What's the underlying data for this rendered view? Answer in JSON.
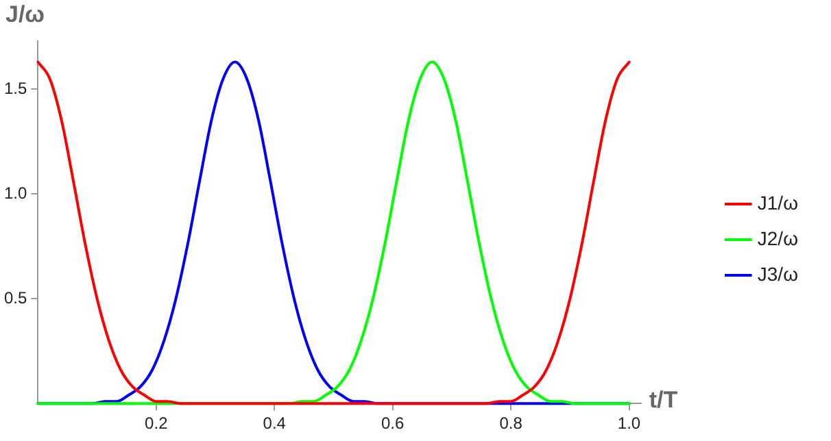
{
  "chart_data": {
    "type": "line",
    "xlabel": "t/T",
    "ylabel": "J/ω",
    "xlim": [
      0,
      1.02
    ],
    "ylim": [
      0,
      1.73
    ],
    "xticks": [
      0.2,
      0.4,
      0.6,
      0.8,
      {
        "value": 1,
        "label": "1.0"
      }
    ],
    "yticks": [
      0.5,
      {
        "value": 1,
        "label": "1.0"
      },
      1.5
    ],
    "grid": false,
    "legend": "right",
    "marker": "none",
    "line_style": "solid",
    "series": [
      {
        "name": "J1/ω",
        "color": "#ff0000",
        "x": [
          0,
          0.02,
          0.04,
          0.06,
          0.08,
          0.1,
          0.12,
          0.14,
          0.16,
          0.18,
          0.2,
          0.22,
          0.24,
          0.76,
          0.78,
          0.8,
          0.82,
          0.84,
          0.86,
          0.88,
          0.9,
          0.92,
          0.94,
          0.96,
          0.98,
          1
        ],
        "values": [
          1.63,
          1.55,
          1.35,
          1.06,
          0.76,
          0.5,
          0.3,
          0.16,
          0.08,
          0.04,
          0.01,
          0.01,
          0,
          0,
          0.01,
          0.01,
          0.04,
          0.08,
          0.16,
          0.3,
          0.5,
          0.76,
          1.06,
          1.35,
          1.55,
          1.63
        ]
      },
      {
        "name": "J2/ω",
        "color": "#00ff00",
        "x": [
          0,
          0.4267,
          0.4467,
          0.4667,
          0.4867,
          0.5067,
          0.5267,
          0.5467,
          0.5667,
          0.5867,
          0.6067,
          0.6267,
          0.6467,
          0.6667,
          0.6867,
          0.7067,
          0.7267,
          0.7467,
          0.7667,
          0.7867,
          0.8067,
          0.8267,
          0.8467,
          0.8667,
          0.8867,
          0.9067,
          1
        ],
        "values": [
          0,
          0,
          0.01,
          0.01,
          0.04,
          0.08,
          0.16,
          0.3,
          0.5,
          0.76,
          1.06,
          1.35,
          1.55,
          1.63,
          1.55,
          1.35,
          1.06,
          0.76,
          0.5,
          0.3,
          0.16,
          0.08,
          0.04,
          0.01,
          0.01,
          0,
          0
        ]
      },
      {
        "name": "J3/ω",
        "color": "#0000ff",
        "x": [
          0,
          0.0933,
          0.1133,
          0.1333,
          0.1533,
          0.1733,
          0.1933,
          0.2133,
          0.2333,
          0.2533,
          0.2733,
          0.2933,
          0.3133,
          0.3333,
          0.3533,
          0.3733,
          0.3933,
          0.4133,
          0.4333,
          0.4533,
          0.4733,
          0.4933,
          0.5133,
          0.5333,
          0.5533,
          0.5733,
          1
        ],
        "values": [
          0,
          0,
          0.01,
          0.01,
          0.04,
          0.08,
          0.16,
          0.3,
          0.5,
          0.76,
          1.06,
          1.35,
          1.55,
          1.63,
          1.55,
          1.35,
          1.06,
          0.76,
          0.5,
          0.3,
          0.16,
          0.08,
          0.04,
          0.01,
          0.01,
          0,
          0
        ]
      }
    ]
  }
}
